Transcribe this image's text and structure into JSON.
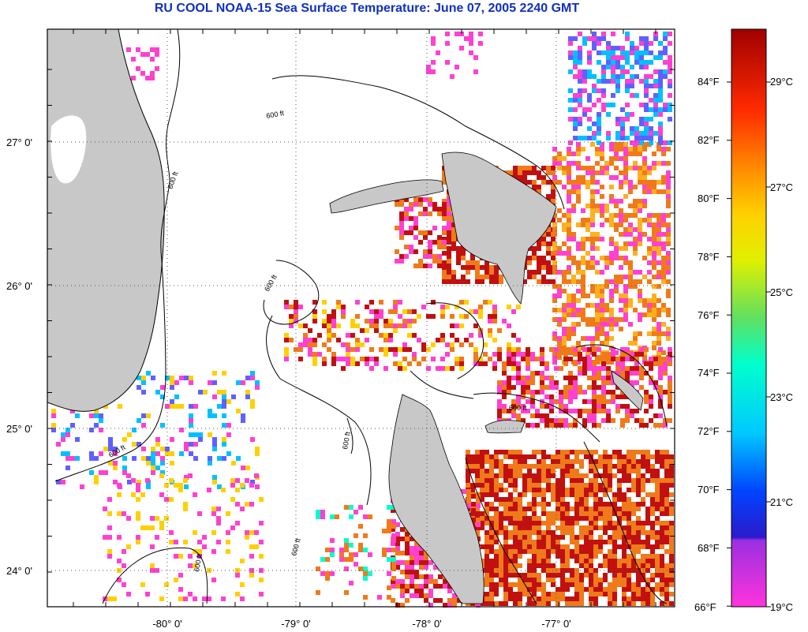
{
  "title": "RU COOL  NOAA-15  Sea Surface Temperature:  June 07, 2005 2240 GMT",
  "lat_labels": [
    "27° 0'",
    "26° 0'",
    "25° 0'",
    "24° 0'"
  ],
  "lon_labels": [
    "-80° 0'",
    "-79° 0'",
    "-78° 0'",
    "-77° 0'"
  ],
  "contour_label": "600 ft",
  "colorbar": {
    "fahrenheit": [
      "84°F",
      "82°F",
      "80°F",
      "78°F",
      "76°F",
      "74°F",
      "72°F",
      "70°F",
      "68°F",
      "66°F"
    ],
    "celsius": [
      "29°C",
      "27°C",
      "25°C",
      "23°C",
      "21°C",
      "19°C"
    ]
  },
  "colors": {
    "land": "#c8c8c8",
    "hot": "#c01010",
    "warm": "#f07a1a",
    "cool": "#ff40d0",
    "title": "#1030c0"
  }
}
